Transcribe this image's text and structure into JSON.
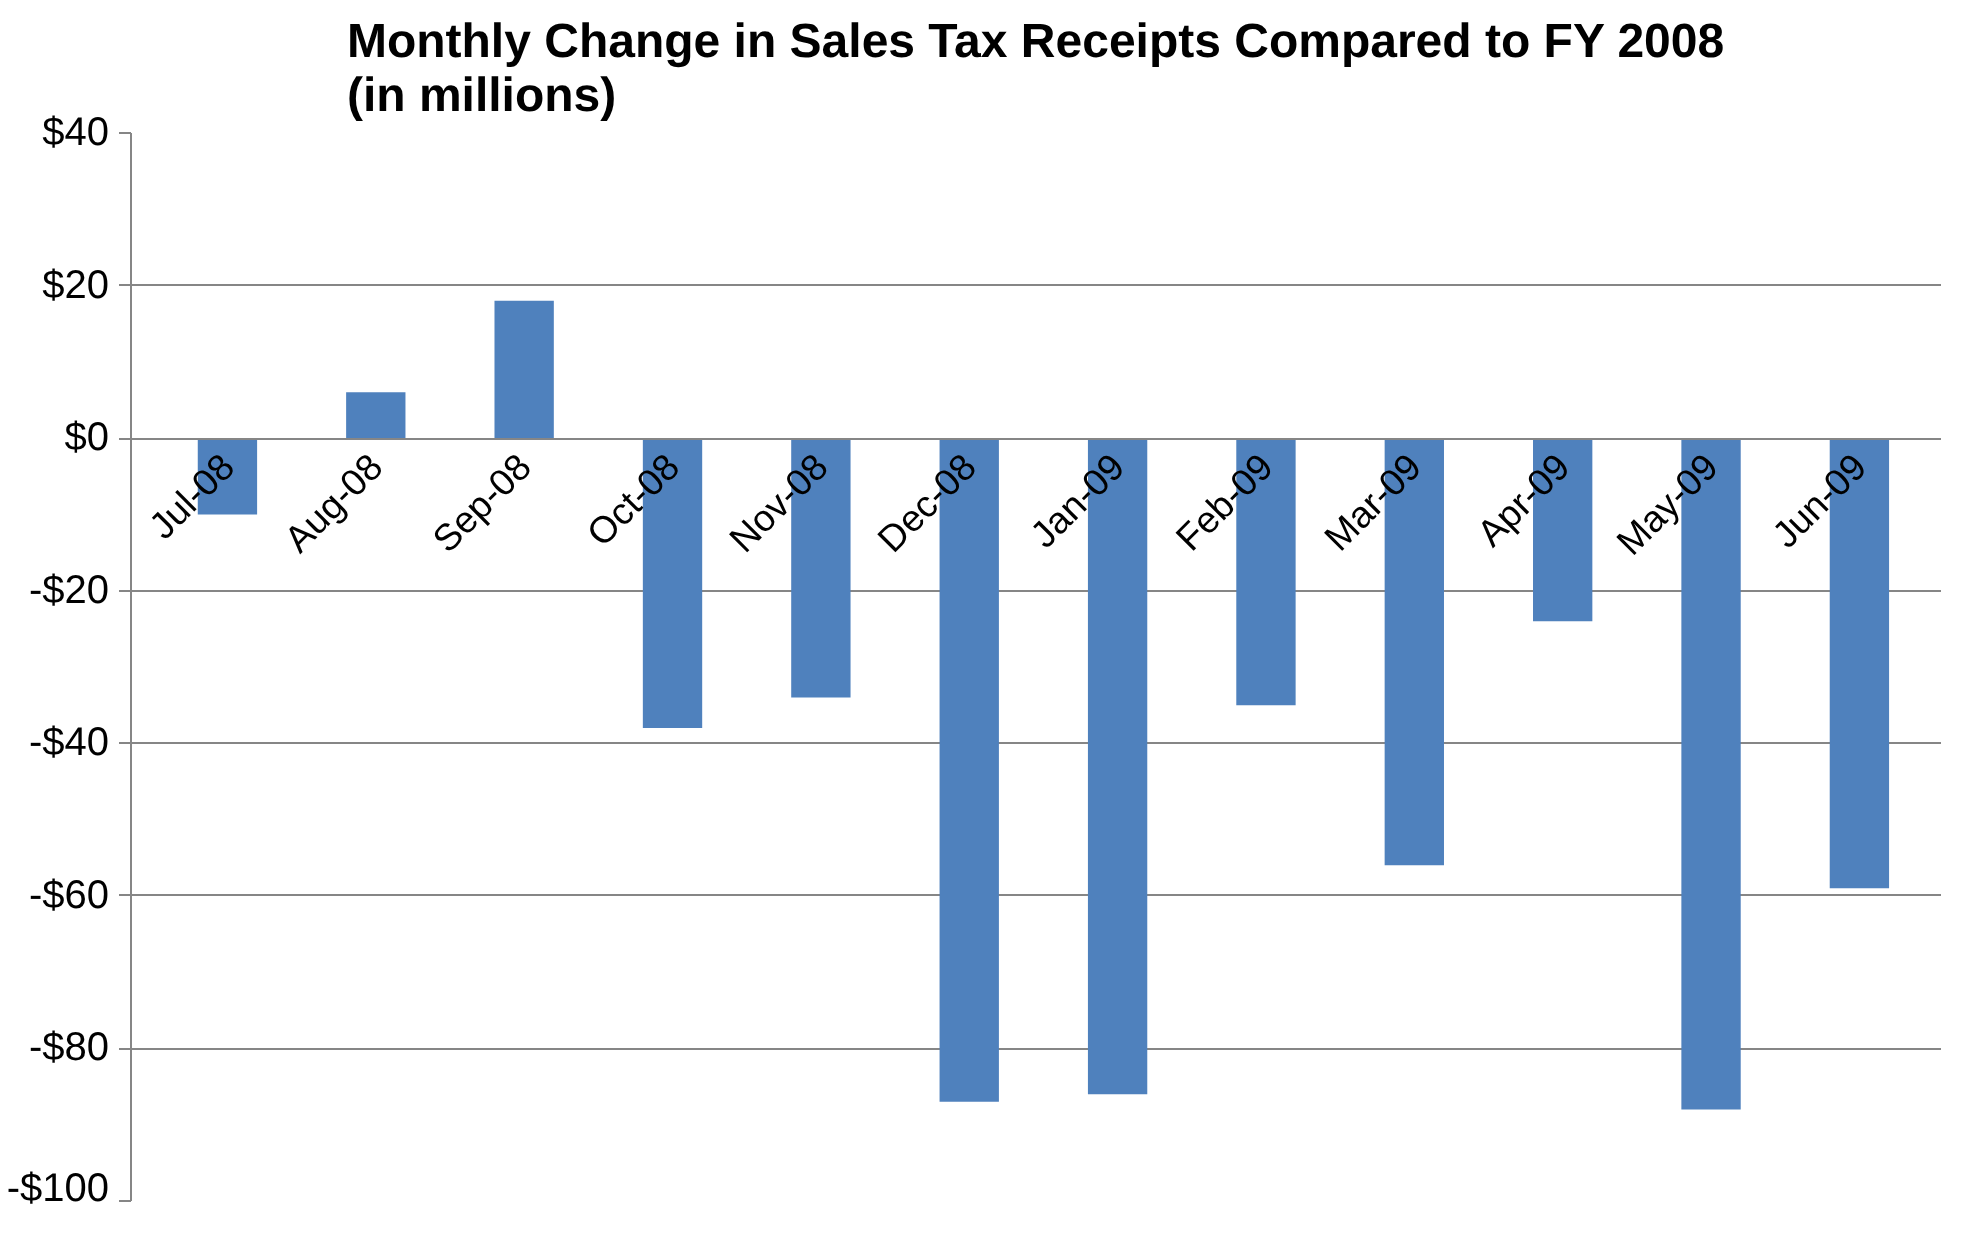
{
  "chart_data": {
    "type": "bar",
    "title": "Monthly Change in Sales Tax Receipts Compared to FY 2008\n(in millions)",
    "categories": [
      "Jul-08",
      "Aug-08",
      "Sep-08",
      "Oct-08",
      "Nov-08",
      "Dec-08",
      "Jan-09",
      "Feb-09",
      "Mar-09",
      "Apr-09",
      "May-09",
      "Jun-09"
    ],
    "values": [
      -10,
      6,
      18,
      -38,
      -34,
      -87,
      -86,
      -35,
      -56,
      -24,
      -88,
      -59
    ],
    "color": "#4f81bd",
    "ylim": [
      -100,
      40
    ],
    "yticks": [
      {
        "value": -100,
        "label": "-$100"
      },
      {
        "value": -80,
        "label": "-$80"
      },
      {
        "value": -60,
        "label": "-$60"
      },
      {
        "value": -40,
        "label": "-$40"
      },
      {
        "value": -20,
        "label": "-$20"
      },
      {
        "value": 0,
        "label": "$0"
      },
      {
        "value": 20,
        "label": "$20"
      },
      {
        "value": 40,
        "label": "$40"
      }
    ],
    "grid": "y"
  }
}
